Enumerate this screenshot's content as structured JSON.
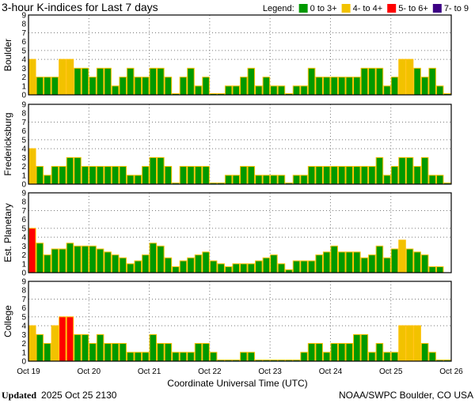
{
  "chart_data": {
    "type": "bar",
    "title": "3-hour K-indices for Last 7 days",
    "legend": {
      "label": "Legend:",
      "position": "top-right",
      "entries": [
        {
          "label": "0 to 3+",
          "color": "#009900"
        },
        {
          "label": "4- to 4+",
          "color": "#f2c200"
        },
        {
          "label": "5- to 6+",
          "color": "#ff0000"
        },
        {
          "label": "7- to 9",
          "color": "#3d0084"
        }
      ]
    },
    "xlabel": "Coordinate Universal Time (UTC)",
    "x_ticks": [
      "Oct 19",
      "Oct 20",
      "Oct 21",
      "Oct 22",
      "Oct 23",
      "Oct 24",
      "Oct 25",
      "Oct 26"
    ],
    "y_ticks": [
      "0",
      "1",
      "2",
      "3",
      "4",
      "5",
      "6",
      "7",
      "8",
      "9"
    ],
    "ylim": [
      0,
      9
    ],
    "grid": {
      "horizontal_at": [
        4,
        5,
        7
      ],
      "vertical_at_day_boundaries": true
    },
    "bar_outline_color": "#ffc000",
    "interval_hours": 3,
    "panels": [
      {
        "name": "Boulder",
        "values": [
          4,
          2,
          2,
          2,
          4,
          4,
          3,
          3,
          2,
          3,
          3,
          1,
          2,
          3,
          2,
          2,
          3,
          3,
          2,
          0,
          2,
          3,
          1,
          2,
          0,
          0,
          1,
          1,
          2,
          3,
          1,
          2,
          1,
          1,
          0,
          1,
          1,
          3,
          2,
          2,
          2,
          2,
          2,
          2,
          3,
          3,
          3,
          1,
          2,
          4,
          4,
          3,
          2,
          3,
          1,
          0
        ]
      },
      {
        "name": "Fredericksburg",
        "values": [
          4,
          2,
          1,
          2,
          2,
          3,
          3,
          2,
          2,
          2,
          2,
          2,
          2,
          1,
          1,
          2,
          3,
          3,
          2,
          0,
          2,
          2,
          2,
          2,
          0,
          0,
          1,
          1,
          2,
          2,
          1,
          1,
          1,
          1,
          0,
          1,
          1,
          2,
          2,
          2,
          2,
          2,
          2,
          2,
          2,
          2,
          3,
          1,
          2,
          3,
          3,
          2,
          3,
          1,
          1,
          0
        ]
      },
      {
        "name": "Est. Planetary",
        "values": [
          5,
          3.33,
          2,
          2.67,
          2.67,
          3.33,
          3,
          3,
          3,
          2.67,
          2.33,
          2,
          1.67,
          1,
          1.33,
          2,
          3.33,
          3,
          1.67,
          0.67,
          1.33,
          1.67,
          2,
          2.33,
          1.33,
          1,
          0.67,
          1,
          1,
          1,
          1.33,
          1.67,
          2,
          1,
          0.33,
          1.33,
          1.33,
          1.33,
          2,
          2.33,
          3,
          2.33,
          2.33,
          2.33,
          1.67,
          2,
          3,
          1.67,
          2.67,
          3.67,
          2.67,
          2.33,
          2,
          0.67,
          0.67,
          null
        ]
      },
      {
        "name": "College",
        "values": [
          4,
          3,
          2,
          4,
          5,
          5,
          3,
          3,
          2,
          3,
          2,
          2,
          2,
          1,
          1,
          1,
          3,
          2,
          2,
          1,
          1,
          1,
          2,
          2,
          1,
          0,
          0,
          0,
          1,
          1,
          0,
          0,
          0,
          0,
          0,
          0,
          1,
          2,
          2,
          1,
          2,
          2,
          2,
          3,
          3,
          1,
          2,
          1,
          1,
          4,
          4,
          4,
          2,
          1,
          0,
          0
        ]
      }
    ]
  },
  "footer": {
    "updated_label": "Updated",
    "updated_value": "2025 Oct 25 2130",
    "credit": "NOAA/SWPC Boulder, CO USA"
  }
}
